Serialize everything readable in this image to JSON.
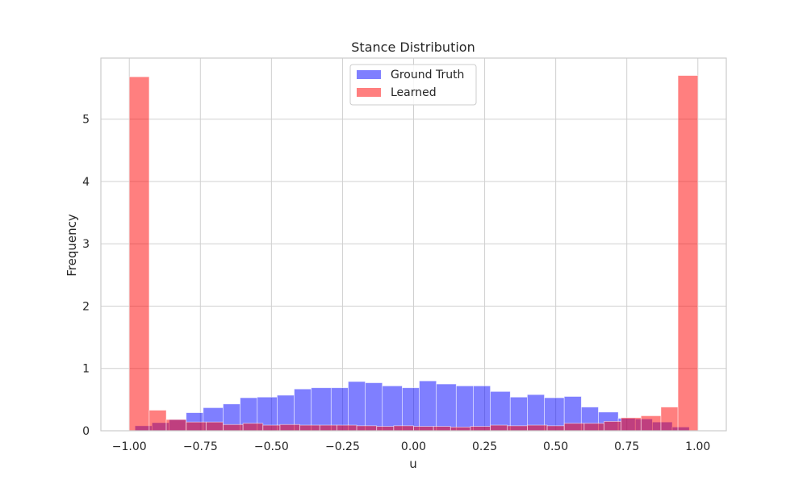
{
  "chart_data": {
    "type": "bar",
    "title": "Stance Distribution",
    "xlabel": "u",
    "ylabel": "Frequency",
    "xlim": [
      -1.1,
      1.1
    ],
    "ylim": [
      0,
      5.98
    ],
    "xticks": [
      -1.0,
      -0.75,
      -0.5,
      -0.25,
      0.0,
      0.25,
      0.5,
      0.75,
      1.0
    ],
    "xtick_labels": [
      "−1.00",
      "−0.75",
      "−0.50",
      "−0.25",
      "0.00",
      "0.25",
      "0.50",
      "0.75",
      "1.00"
    ],
    "yticks": [
      0,
      1,
      2,
      3,
      4,
      5
    ],
    "ytick_labels": [
      "0",
      "1",
      "2",
      "3",
      "4",
      "5"
    ],
    "grid": true,
    "legend_position": "top-center",
    "series": [
      {
        "name": "Ground Truth",
        "color": "#0000ff",
        "opacity": 0.5,
        "bins": [
          [
            -0.98,
            -0.92,
            0.08
          ],
          [
            -0.92,
            -0.86,
            0.13
          ],
          [
            -0.86,
            -0.8,
            0.18
          ],
          [
            -0.8,
            -0.74,
            0.29
          ],
          [
            -0.74,
            -0.67,
            0.37
          ],
          [
            -0.67,
            -0.61,
            0.43
          ],
          [
            -0.61,
            -0.55,
            0.53
          ],
          [
            -0.55,
            -0.48,
            0.54
          ],
          [
            -0.48,
            -0.42,
            0.57
          ],
          [
            -0.42,
            -0.36,
            0.67
          ],
          [
            -0.36,
            -0.29,
            0.69
          ],
          [
            -0.29,
            -0.23,
            0.69
          ],
          [
            -0.23,
            -0.17,
            0.79
          ],
          [
            -0.17,
            -0.11,
            0.77
          ],
          [
            -0.11,
            -0.04,
            0.72
          ],
          [
            -0.04,
            0.02,
            0.69
          ],
          [
            0.02,
            0.08,
            0.8
          ],
          [
            0.08,
            0.15,
            0.75
          ],
          [
            0.15,
            0.21,
            0.72
          ],
          [
            0.21,
            0.27,
            0.72
          ],
          [
            0.27,
            0.34,
            0.63
          ],
          [
            0.34,
            0.4,
            0.54
          ],
          [
            0.4,
            0.46,
            0.58
          ],
          [
            0.46,
            0.53,
            0.53
          ],
          [
            0.53,
            0.59,
            0.55
          ],
          [
            0.59,
            0.65,
            0.38
          ],
          [
            0.65,
            0.72,
            0.3
          ],
          [
            0.72,
            0.78,
            0.2
          ],
          [
            0.78,
            0.84,
            0.19
          ],
          [
            0.84,
            0.91,
            0.14
          ],
          [
            0.91,
            0.97,
            0.06
          ]
        ]
      },
      {
        "name": "Learned",
        "color": "#ff0000",
        "opacity": 0.5,
        "bins": [
          [
            -1.0,
            -0.93,
            5.68
          ],
          [
            -0.93,
            -0.87,
            0.33
          ],
          [
            -0.87,
            -0.8,
            0.18
          ],
          [
            -0.8,
            -0.73,
            0.14
          ],
          [
            -0.73,
            -0.67,
            0.14
          ],
          [
            -0.67,
            -0.6,
            0.1
          ],
          [
            -0.6,
            -0.53,
            0.12
          ],
          [
            -0.53,
            -0.47,
            0.09
          ],
          [
            -0.47,
            -0.4,
            0.1
          ],
          [
            -0.4,
            -0.33,
            0.09
          ],
          [
            -0.33,
            -0.27,
            0.09
          ],
          [
            -0.27,
            -0.2,
            0.09
          ],
          [
            -0.2,
            -0.13,
            0.08
          ],
          [
            -0.13,
            -0.07,
            0.07
          ],
          [
            -0.07,
            0.0,
            0.08
          ],
          [
            0.0,
            0.07,
            0.07
          ],
          [
            0.07,
            0.13,
            0.07
          ],
          [
            0.13,
            0.2,
            0.06
          ],
          [
            0.2,
            0.27,
            0.07
          ],
          [
            0.27,
            0.33,
            0.09
          ],
          [
            0.33,
            0.4,
            0.08
          ],
          [
            0.4,
            0.47,
            0.09
          ],
          [
            0.47,
            0.53,
            0.08
          ],
          [
            0.53,
            0.6,
            0.12
          ],
          [
            0.6,
            0.67,
            0.12
          ],
          [
            0.67,
            0.73,
            0.15
          ],
          [
            0.73,
            0.8,
            0.21
          ],
          [
            0.8,
            0.87,
            0.24
          ],
          [
            0.87,
            0.93,
            0.38
          ],
          [
            0.93,
            1.0,
            5.7
          ]
        ]
      }
    ]
  }
}
